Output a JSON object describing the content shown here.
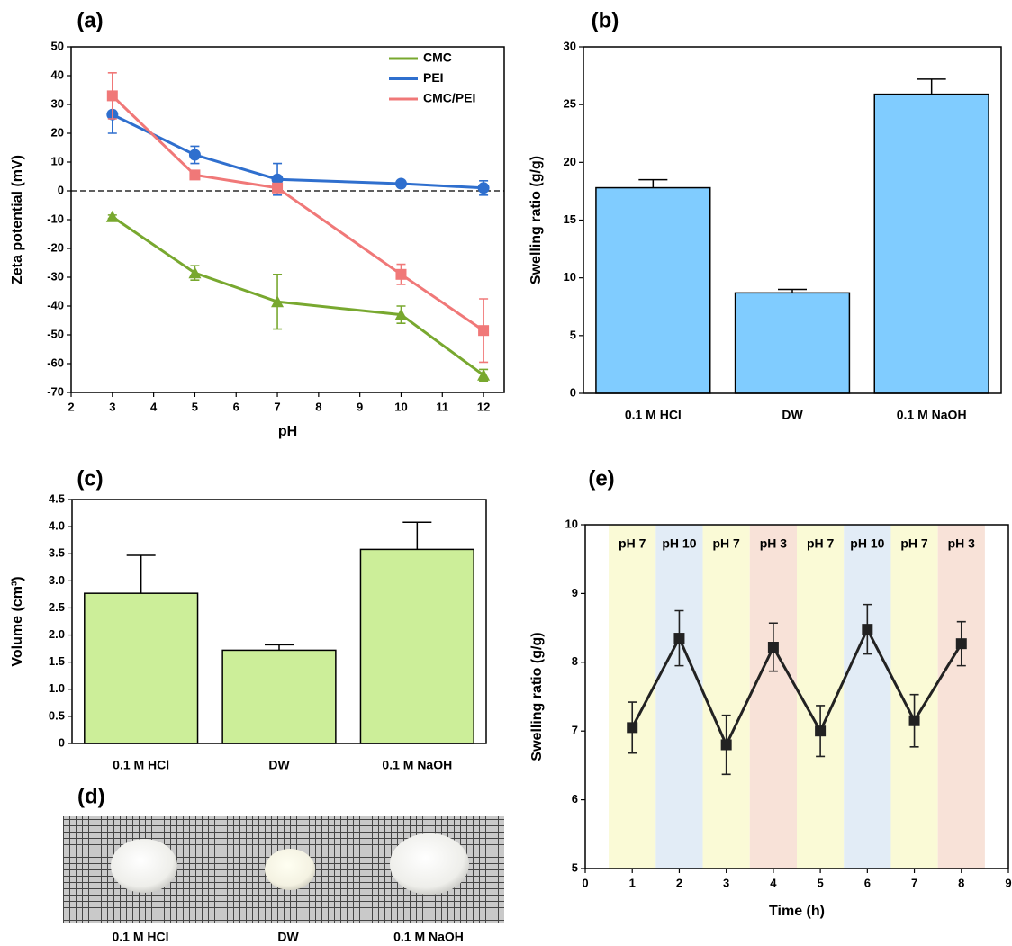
{
  "chart_data": [
    {
      "type": "line",
      "panel_label": "(a)",
      "x_label": "pH",
      "y_label": "Zeta potential (mV)",
      "x": [
        3,
        5,
        7,
        10,
        12
      ],
      "xlim": [
        2,
        12.5
      ],
      "xticks": [
        2,
        3,
        4,
        5,
        6,
        7,
        8,
        9,
        10,
        11,
        12
      ],
      "ylim": [
        -70,
        50
      ],
      "yticks": [
        -70,
        -60,
        -50,
        -40,
        -30,
        -20,
        -10,
        0,
        10,
        20,
        30,
        40,
        50
      ],
      "reference_line": 0,
      "legend": "upper right",
      "series": [
        {
          "name": "CMC",
          "color": "#78a82f",
          "marker": "triangle",
          "values": [
            -9,
            -28.5,
            -38.5,
            -43,
            -64
          ],
          "errors": [
            0.6,
            2.5,
            9.5,
            3,
            2
          ]
        },
        {
          "name": "PEI",
          "color": "#2f6fce",
          "marker": "circle",
          "values": [
            26.5,
            12.5,
            4,
            2.5,
            1
          ],
          "errors": [
            6.5,
            3,
            5.5,
            1,
            2.5
          ]
        },
        {
          "name": "CMC/PEI",
          "color": "#f07878",
          "marker": "square",
          "values": [
            33,
            5.5,
            1,
            -29,
            -48.5
          ],
          "errors": [
            8,
            0.6,
            1,
            3.5,
            11
          ]
        }
      ]
    },
    {
      "type": "bar",
      "panel_label": "(b)",
      "y_label": "Swelling ratio (g/g)",
      "categories": [
        "0.1 M HCl",
        "DW",
        "0.1 M NaOH"
      ],
      "values": [
        17.8,
        8.7,
        25.9
      ],
      "errors": [
        0.7,
        0.3,
        1.3
      ],
      "color": "#80ccff",
      "ylim": [
        0,
        30
      ],
      "yticks": [
        0,
        5,
        10,
        15,
        20,
        25,
        30
      ]
    },
    {
      "type": "bar",
      "panel_label": "(c)",
      "y_label": "Volume (cm³)",
      "categories": [
        "0.1 M HCl",
        "DW",
        "0.1 M NaOH"
      ],
      "values": [
        2.77,
        1.72,
        3.58
      ],
      "errors": [
        0.7,
        0.1,
        0.5
      ],
      "color": "#ccee99",
      "ylim": [
        0,
        4.5
      ],
      "yticks": [
        0,
        0.5,
        {
          "value": 1,
          "label": "1.0"
        },
        1.5,
        {
          "value": 2,
          "label": "2.0"
        },
        2.5,
        {
          "value": 3,
          "label": "3.0"
        },
        3.5,
        {
          "value": 4,
          "label": "4.0"
        },
        4.5
      ]
    },
    {
      "type": "line",
      "panel_label": "(e)",
      "x_label": "Time (h)",
      "y_label": "Swelling ratio (g/g)",
      "x": [
        1,
        2,
        3,
        4,
        5,
        6,
        7,
        8
      ],
      "xlim": [
        0,
        9
      ],
      "xticks": [
        0,
        1,
        2,
        3,
        4,
        5,
        6,
        7,
        8,
        9
      ],
      "ylim": [
        5,
        10
      ],
      "yticks": [
        5,
        6,
        7,
        8,
        9,
        10
      ],
      "bands": [
        {
          "start": 0.5,
          "end": 1.5,
          "label": "pH 7",
          "color": "#fafad6"
        },
        {
          "start": 1.5,
          "end": 2.5,
          "label": "pH 10",
          "color": "#e2ecf6"
        },
        {
          "start": 2.5,
          "end": 3.5,
          "label": "pH 7",
          "color": "#fafad6"
        },
        {
          "start": 3.5,
          "end": 4.5,
          "label": "pH 3",
          "color": "#f8e2d8"
        },
        {
          "start": 4.5,
          "end": 5.5,
          "label": "pH 7",
          "color": "#fafad6"
        },
        {
          "start": 5.5,
          "end": 6.5,
          "label": "pH 10",
          "color": "#e2ecf6"
        },
        {
          "start": 6.5,
          "end": 7.5,
          "label": "pH 7",
          "color": "#fafad6"
        },
        {
          "start": 7.5,
          "end": 8.5,
          "label": "pH 3",
          "color": "#f8e2d8"
        }
      ],
      "series": [
        {
          "color": "#222222",
          "marker": "square",
          "values": [
            7.05,
            8.35,
            6.8,
            8.22,
            7.0,
            8.48,
            7.15,
            8.27
          ],
          "errors": [
            0.37,
            0.4,
            0.43,
            0.35,
            0.37,
            0.36,
            0.38,
            0.32
          ]
        }
      ]
    }
  ],
  "photo": {
    "panel_label": "(d)",
    "captions": [
      "0.1 M HCl",
      "DW",
      "0.1 M NaOH"
    ]
  }
}
